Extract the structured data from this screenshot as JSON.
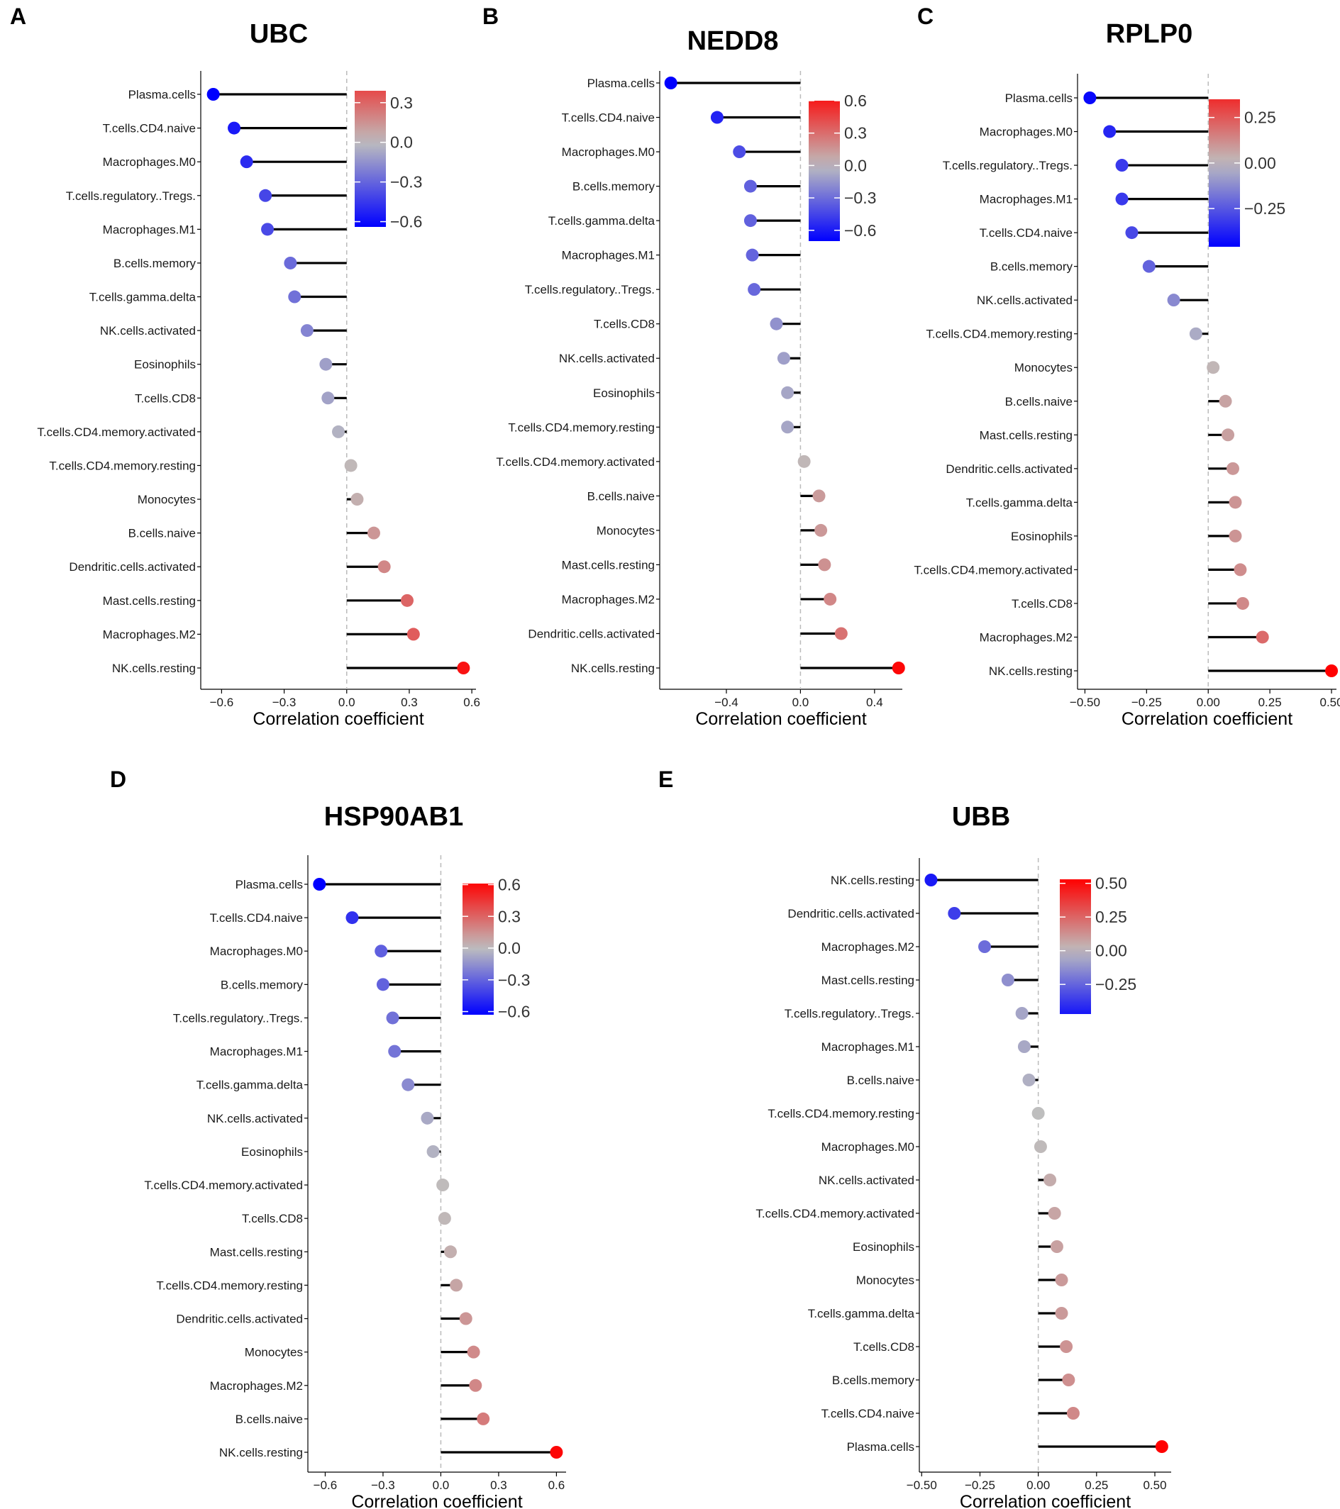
{
  "colors": {
    "low": "#0000ff",
    "mid": "#bebebe",
    "high": "#ff0000",
    "stem": "#000000",
    "zero_line": "#bbbbbb"
  },
  "chart_data": [
    {
      "panel": "A",
      "type": "lollipop",
      "title": "UBC",
      "xlabel": "Correlation coefficient",
      "xlim": [
        -0.7,
        0.62
      ],
      "xticks": [
        -0.6,
        -0.3,
        0.0,
        0.3,
        0.6
      ],
      "xtick_labels": [
        "−0.6",
        "−0.3",
        "0.0",
        "0.3",
        "0.6"
      ],
      "color_limit": 0.62,
      "legend": {
        "ticks": [
          0.3,
          0.0,
          -0.3,
          -0.6
        ],
        "labels": [
          "0.3",
          "0.0",
          "−0.3",
          "−0.6"
        ],
        "min": -0.64,
        "max": 0.39
      },
      "categories": [
        "Plasma.cells",
        "T.cells.CD4.naive",
        "Macrophages.M0",
        "T.cells.regulatory..Tregs.",
        "Macrophages.M1",
        "B.cells.memory",
        "T.cells.gamma.delta",
        "NK.cells.activated",
        "Eosinophils",
        "T.cells.CD8",
        "T.cells.CD4.memory.activated",
        "T.cells.CD4.memory.resting",
        "Monocytes",
        "B.cells.naive",
        "Dendritic.cells.activated",
        "Mast.cells.resting",
        "Macrophages.M2",
        "NK.cells.resting"
      ],
      "values": [
        -0.64,
        -0.54,
        -0.48,
        -0.39,
        -0.38,
        -0.27,
        -0.25,
        -0.19,
        -0.1,
        -0.09,
        -0.04,
        0.02,
        0.05,
        0.13,
        0.18,
        0.29,
        0.32,
        0.56
      ]
    },
    {
      "panel": "B",
      "type": "lollipop",
      "title": "NEDD8",
      "xlabel": "Correlation coefficient",
      "xlim": [
        -0.76,
        0.55
      ],
      "xticks": [
        -0.4,
        0.0,
        0.4
      ],
      "xtick_labels": [
        "−0.4",
        "0.0",
        "0.4"
      ],
      "color_limit": 0.55,
      "legend": {
        "ticks": [
          0.6,
          0.3,
          0.0,
          -0.3,
          -0.6
        ],
        "labels": [
          "0.6",
          "0.3",
          "0.0",
          "−0.3",
          "−0.6"
        ],
        "min": -0.7,
        "max": 0.6
      },
      "categories": [
        "Plasma.cells",
        "T.cells.CD4.naive",
        "Macrophages.M0",
        "B.cells.memory",
        "T.cells.gamma.delta",
        "Macrophages.M1",
        "T.cells.regulatory..Tregs.",
        "T.cells.CD8",
        "NK.cells.activated",
        "Eosinophils",
        "T.cells.CD4.memory.resting",
        "T.cells.CD4.memory.activated",
        "B.cells.naive",
        "Monocytes",
        "Mast.cells.resting",
        "Macrophages.M2",
        "Dendritic.cells.activated",
        "NK.cells.resting"
      ],
      "values": [
        -0.7,
        -0.45,
        -0.33,
        -0.27,
        -0.27,
        -0.26,
        -0.25,
        -0.13,
        -0.09,
        -0.07,
        -0.07,
        0.02,
        0.1,
        0.11,
        0.13,
        0.16,
        0.22,
        0.53
      ]
    },
    {
      "panel": "C",
      "type": "lollipop",
      "title": "RPLP0",
      "xlabel": "Correlation coefficient",
      "xlim": [
        -0.53,
        0.52
      ],
      "xticks": [
        -0.5,
        -0.25,
        0.0,
        0.25,
        0.5
      ],
      "xtick_labels": [
        "−0.50",
        "−0.25",
        "0.00",
        "0.25",
        "0.50"
      ],
      "color_limit": 0.5,
      "legend": {
        "ticks": [
          0.25,
          0.0,
          -0.25
        ],
        "labels": [
          "0.25",
          "0.00",
          "−0.25"
        ],
        "min": -0.46,
        "max": 0.35
      },
      "categories": [
        "Plasma.cells",
        "Macrophages.M0",
        "T.cells.regulatory..Tregs.",
        "Macrophages.M1",
        "T.cells.CD4.naive",
        "B.cells.memory",
        "NK.cells.activated",
        "T.cells.CD4.memory.resting",
        "Monocytes",
        "B.cells.naive",
        "Mast.cells.resting",
        "Dendritic.cells.activated",
        "T.cells.gamma.delta",
        "Eosinophils",
        "T.cells.CD4.memory.activated",
        "T.cells.CD8",
        "Macrophages.M2",
        "NK.cells.resting"
      ],
      "values": [
        -0.48,
        -0.4,
        -0.35,
        -0.35,
        -0.31,
        -0.24,
        -0.14,
        -0.05,
        0.02,
        0.07,
        0.08,
        0.1,
        0.11,
        0.11,
        0.13,
        0.14,
        0.22,
        0.5
      ]
    },
    {
      "panel": "D",
      "type": "lollipop",
      "title": "HSP90AB1",
      "xlabel": "Correlation coefficient",
      "xlim": [
        -0.69,
        0.65
      ],
      "xticks": [
        -0.6,
        -0.3,
        0.0,
        0.3,
        0.6
      ],
      "xtick_labels": [
        "−0.6",
        "−0.3",
        "0.0",
        "0.3",
        "0.6"
      ],
      "color_limit": 0.62,
      "legend": {
        "ticks": [
          0.6,
          0.3,
          0.0,
          -0.3,
          -0.6
        ],
        "labels": [
          "0.6",
          "0.3",
          "0.0",
          "−0.3",
          "−0.6"
        ],
        "min": -0.63,
        "max": 0.61
      },
      "categories": [
        "Plasma.cells",
        "T.cells.CD4.naive",
        "Macrophages.M0",
        "B.cells.memory",
        "T.cells.regulatory..Tregs.",
        "Macrophages.M1",
        "T.cells.gamma.delta",
        "NK.cells.activated",
        "Eosinophils",
        "T.cells.CD4.memory.activated",
        "T.cells.CD8",
        "Mast.cells.resting",
        "T.cells.CD4.memory.resting",
        "Dendritic.cells.activated",
        "Monocytes",
        "Macrophages.M2",
        "B.cells.naive",
        "NK.cells.resting"
      ],
      "values": [
        -0.63,
        -0.46,
        -0.31,
        -0.3,
        -0.25,
        -0.24,
        -0.17,
        -0.07,
        -0.04,
        0.01,
        0.02,
        0.05,
        0.08,
        0.13,
        0.17,
        0.18,
        0.22,
        0.6
      ]
    },
    {
      "panel": "E",
      "type": "lollipop",
      "title": "UBB",
      "xlabel": "Correlation coefficient",
      "xlim": [
        -0.51,
        0.57
      ],
      "xticks": [
        -0.5,
        -0.25,
        0.0,
        0.25,
        0.5
      ],
      "xtick_labels": [
        "−0.50",
        "−0.25",
        "0.00",
        "0.25",
        "0.50"
      ],
      "color_limit": 0.53,
      "legend": {
        "ticks": [
          0.5,
          0.25,
          0.0,
          -0.25
        ],
        "labels": [
          "0.50",
          "0.25",
          "0.00",
          "−0.25"
        ],
        "min": -0.47,
        "max": 0.53
      },
      "categories": [
        "NK.cells.resting",
        "Dendritic.cells.activated",
        "Macrophages.M2",
        "Mast.cells.resting",
        "T.cells.regulatory..Tregs.",
        "Macrophages.M1",
        "B.cells.naive",
        "T.cells.CD4.memory.resting",
        "Macrophages.M0",
        "NK.cells.activated",
        "T.cells.CD4.memory.activated",
        "Eosinophils",
        "Monocytes",
        "T.cells.gamma.delta",
        "T.cells.CD8",
        "B.cells.memory",
        "T.cells.CD4.naive",
        "Plasma.cells"
      ],
      "values": [
        -0.46,
        -0.36,
        -0.23,
        -0.13,
        -0.07,
        -0.06,
        -0.04,
        0.0,
        0.01,
        0.05,
        0.07,
        0.08,
        0.1,
        0.1,
        0.12,
        0.13,
        0.15,
        0.53
      ]
    }
  ]
}
